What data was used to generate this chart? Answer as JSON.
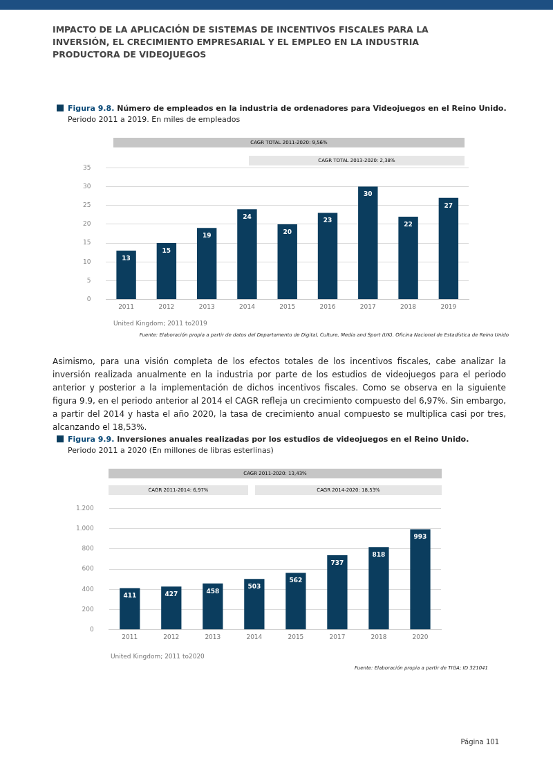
{
  "chart_data": [
    {
      "type": "bar",
      "title": "Figura 9.8. Número de empleados en la industria de ordenadores para Videojuegos en el Reino Unido.",
      "subtitle": "Periodo 2011 a 2019. En miles de empleados",
      "categories": [
        "2011",
        "2012",
        "2013",
        "2014",
        "2015",
        "2016",
        "2017",
        "2018",
        "2019"
      ],
      "values": [
        13,
        15,
        19,
        24,
        20,
        23,
        30,
        22,
        27
      ],
      "color": "#0b3d5e",
      "ylim": [
        0,
        35
      ],
      "yticks": [
        0,
        5,
        10,
        15,
        20,
        25,
        30,
        35
      ],
      "grid": "y",
      "legend": false,
      "data_labels": true,
      "annotations": [
        "IMPACTO DE LA APLICACIÓN DE SISTEMAS DE INCENTIVOS FISCALES PARA LA INVERSIÓN, EL CRECIMIENTO EMPRESARIAL Y EL EMPLEO EN LA INDUSTRIA PRODUCTORA DE VIDEOJUEGOS",
        "CAGR TOTAL 2011-2020: 9,56%",
        "CAGR TOTAL 2013-2020: 2,38%",
        "United Kingdom; 2011 to2019",
        "Fuente: Elaboración propia a partir de datos del Departamento de Digital, Culture, Media and Sport (UK). Oficina Nacional de Estadística de Reino Unido"
      ]
    },
    {
      "type": "bar",
      "title": "Figura 9.9. Inversiones anuales realizadas por los estudios de videojuegos en el Reino Unido.",
      "subtitle": "Periodo 2011 a 2020 (En millones de libras esterlinas)",
      "categories": [
        "2011",
        "2012",
        "2013",
        "2014",
        "2015",
        "2017",
        "2018",
        "2020"
      ],
      "values": [
        411,
        427,
        458,
        503,
        562,
        737,
        818,
        993
      ],
      "color": "#0b3d5e",
      "ylim": [
        0,
        1200
      ],
      "yticks": [
        0,
        200,
        400,
        600,
        800,
        {
          "value": 1000,
          "label": "1.000"
        },
        {
          "value": 1200,
          "label": "1.200"
        }
      ],
      "grid": "y",
      "legend": false,
      "data_labels": true,
      "annotations": [
        "Asimismo, para una visión completa de los efectos totales de los incentivos fiscales, cabe analizar la inversión realizada anualmente en la industria por parte de los estudios de videojuegos para el periodo anterior y posterior a la implementación de dichos incentivos fiscales. Como se observa en la siguiente figura 9.9, en el periodo anterior al 2014 el CAGR refleja un crecimiento compuesto del 6,97%. Sin embargo, a partir del 2014 y hasta el año 2020, la tasa de crecimiento anual compuesto se multiplica casi por tres, alcanzando el 18,53%.",
        "CAGR 2011-2020: 13,43%",
        "CAGR 2011-2014: 6,97%",
        "CAGR 2014-2020: 18,53%",
        "United Kingdom; 2011 to2020",
        "Fuente: Elaboración propia a partir de TIGA; ID 321041",
        "Página 101"
      ]
    }
  ]
}
